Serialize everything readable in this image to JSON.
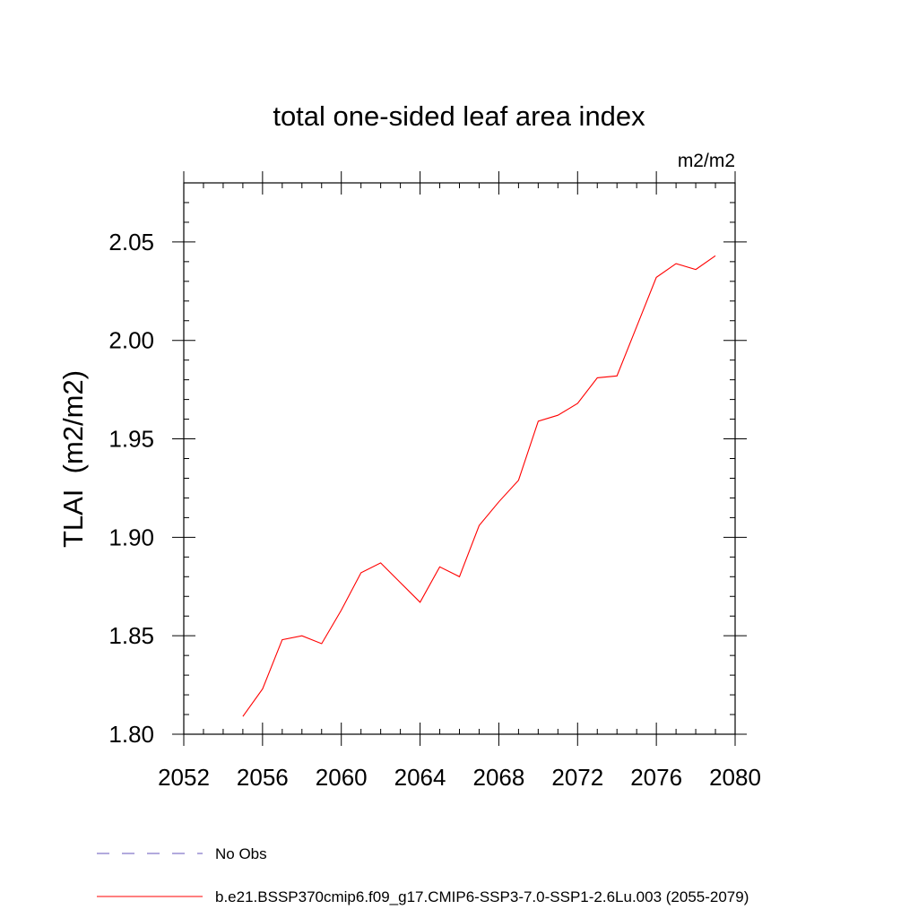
{
  "chart_data": {
    "type": "line",
    "title": "total one-sided leaf area index",
    "units": "m2/m2",
    "xlabel": "",
    "ylabel": "TLAI  (m2/m2)",
    "xlim": [
      2052,
      2080
    ],
    "ylim": [
      1.8,
      2.08
    ],
    "x_ticks": [
      2052,
      2056,
      2060,
      2064,
      2068,
      2072,
      2076,
      2080
    ],
    "y_ticks": [
      1.8,
      1.85,
      1.9,
      1.95,
      2.0,
      2.05
    ],
    "x_tick_labels": [
      "2052",
      "2056",
      "2060",
      "2064",
      "2068",
      "2072",
      "2076",
      "2080"
    ],
    "y_tick_labels": [
      "1.80",
      "1.85",
      "1.90",
      "1.95",
      "2.00",
      "2.05"
    ],
    "grid": false,
    "legend_position": "bottom",
    "series": [
      {
        "name": "b.e21.BSSP370cmip6.f09_g17.CMIP6-SSP3-7.0-SSP1-2.6Lu.003 (2055-2079)",
        "color": "#ff0000",
        "style": "solid",
        "x": [
          2055,
          2056,
          2057,
          2058,
          2059,
          2060,
          2061,
          2062,
          2063,
          2064,
          2065,
          2066,
          2067,
          2068,
          2069,
          2070,
          2071,
          2072,
          2073,
          2074,
          2075,
          2076,
          2077,
          2078,
          2079
        ],
        "y": [
          1.809,
          1.823,
          1.848,
          1.85,
          1.846,
          1.863,
          1.882,
          1.887,
          1.877,
          1.867,
          1.885,
          1.88,
          1.906,
          1.918,
          1.929,
          1.959,
          1.962,
          1.968,
          1.981,
          1.982,
          2.007,
          2.032,
          2.039,
          2.036,
          2.043
        ]
      }
    ],
    "legend": [
      {
        "label": "No Obs",
        "color": "#6655bb",
        "style": "dashed"
      },
      {
        "label": "b.e21.BSSP370cmip6.f09_g17.CMIP6-SSP3-7.0-SSP1-2.6Lu.003 (2055-2079)",
        "color": "#ff0000",
        "style": "solid"
      }
    ]
  }
}
